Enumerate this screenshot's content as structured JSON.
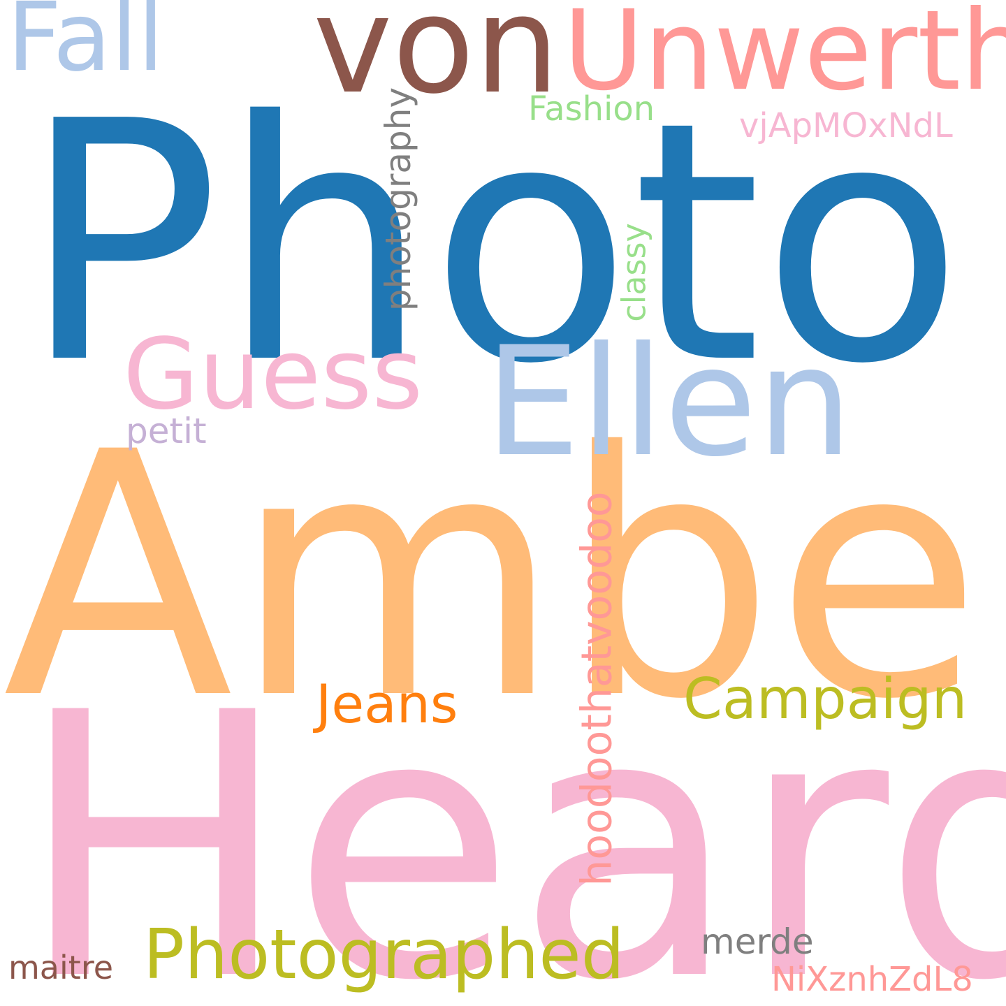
{
  "word_cloud": {
    "background": "#ffffff",
    "words": [
      {
        "id": "photo",
        "text": "Photo",
        "color": "#1f77b4",
        "orientation": "horizontal"
      },
      {
        "id": "amber",
        "text": "Amber",
        "color": "#ffbb78",
        "orientation": "horizontal"
      },
      {
        "id": "heard",
        "text": "Heard",
        "color": "#f7b6d2",
        "orientation": "horizontal"
      },
      {
        "id": "von",
        "text": "von",
        "color": "#8c564b",
        "orientation": "horizontal"
      },
      {
        "id": "unwerth",
        "text": "Unwerth",
        "color": "#ff9896",
        "orientation": "horizontal"
      },
      {
        "id": "fall",
        "text": "Fall",
        "color": "#aec7e8",
        "orientation": "horizontal"
      },
      {
        "id": "ellen",
        "text": "Ellen",
        "color": "#aec7e8",
        "orientation": "horizontal"
      },
      {
        "id": "guess",
        "text": "Guess",
        "color": "#f7b6d2",
        "orientation": "horizontal"
      },
      {
        "id": "photographed",
        "text": "Photographed",
        "color": "#bcbd22",
        "orientation": "horizontal"
      },
      {
        "id": "campaign",
        "text": "Campaign",
        "color": "#bcbd22",
        "orientation": "horizontal"
      },
      {
        "id": "jeans",
        "text": "Jeans",
        "color": "#ff7f0e",
        "orientation": "horizontal"
      },
      {
        "id": "hoodoothatvoodoo",
        "text": "hoodoothatvoodoo",
        "color": "#ff9896",
        "orientation": "vertical"
      },
      {
        "id": "photography",
        "text": "photography",
        "color": "#7f7f7f",
        "orientation": "vertical"
      },
      {
        "id": "classy",
        "text": "classy",
        "color": "#98df8a",
        "orientation": "vertical"
      },
      {
        "id": "fashion",
        "text": "Fashion",
        "color": "#98df8a",
        "orientation": "horizontal"
      },
      {
        "id": "vjapmoxndl",
        "text": "vjApMOxNdL",
        "color": "#f7b6d2",
        "orientation": "horizontal"
      },
      {
        "id": "petit",
        "text": "petit",
        "color": "#c5b0d5",
        "orientation": "horizontal"
      },
      {
        "id": "merde",
        "text": "merde",
        "color": "#7f7f7f",
        "orientation": "horizontal"
      },
      {
        "id": "maitre",
        "text": "maitre",
        "color": "#8c564b",
        "orientation": "horizontal"
      },
      {
        "id": "nixznhzdl8",
        "text": "NiXznhZdL8",
        "color": "#ff9896",
        "orientation": "horizontal"
      }
    ]
  }
}
